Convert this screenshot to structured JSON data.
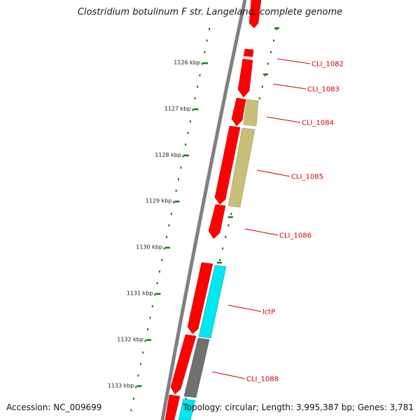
{
  "title": "Clostridium botulinum F str. Langeland, complete genome",
  "footer": {
    "accession": "Accession: NC_009699",
    "summary": "Topology: circular; Length: 3,995,387 bp; Genes: 3,781"
  },
  "colors": {
    "backbone": "#808080",
    "forward_strand": "#ff0000",
    "reverse_strand_a": "#c8c078",
    "reverse_strand_b": "#00e8f0",
    "reverse_strand_c": "#707070",
    "scale_ticks": "#1a7a1a",
    "labels": "#cc0000"
  },
  "scale_ticks": [
    {
      "kbp": 1126,
      "label": "1126 kbp"
    },
    {
      "kbp": 1127,
      "label": "1127 kbp"
    },
    {
      "kbp": 1128,
      "label": "1128 kbp"
    },
    {
      "kbp": 1129,
      "label": "1129 kbp"
    },
    {
      "kbp": 1130,
      "label": "1130 kbp"
    },
    {
      "kbp": 1131,
      "label": "1131 kbp"
    },
    {
      "kbp": 1132,
      "label": "1132 kbp"
    },
    {
      "kbp": 1133,
      "label": "1133 kbp"
    }
  ],
  "gene_labels": [
    {
      "name": "CLI_1082"
    },
    {
      "name": "CLI_1083"
    },
    {
      "name": "CLI_1084"
    },
    {
      "name": "CLI_1085"
    },
    {
      "name": "CLI_1086"
    },
    {
      "name": "lctP"
    },
    {
      "name": "CLI_1088"
    }
  ]
}
